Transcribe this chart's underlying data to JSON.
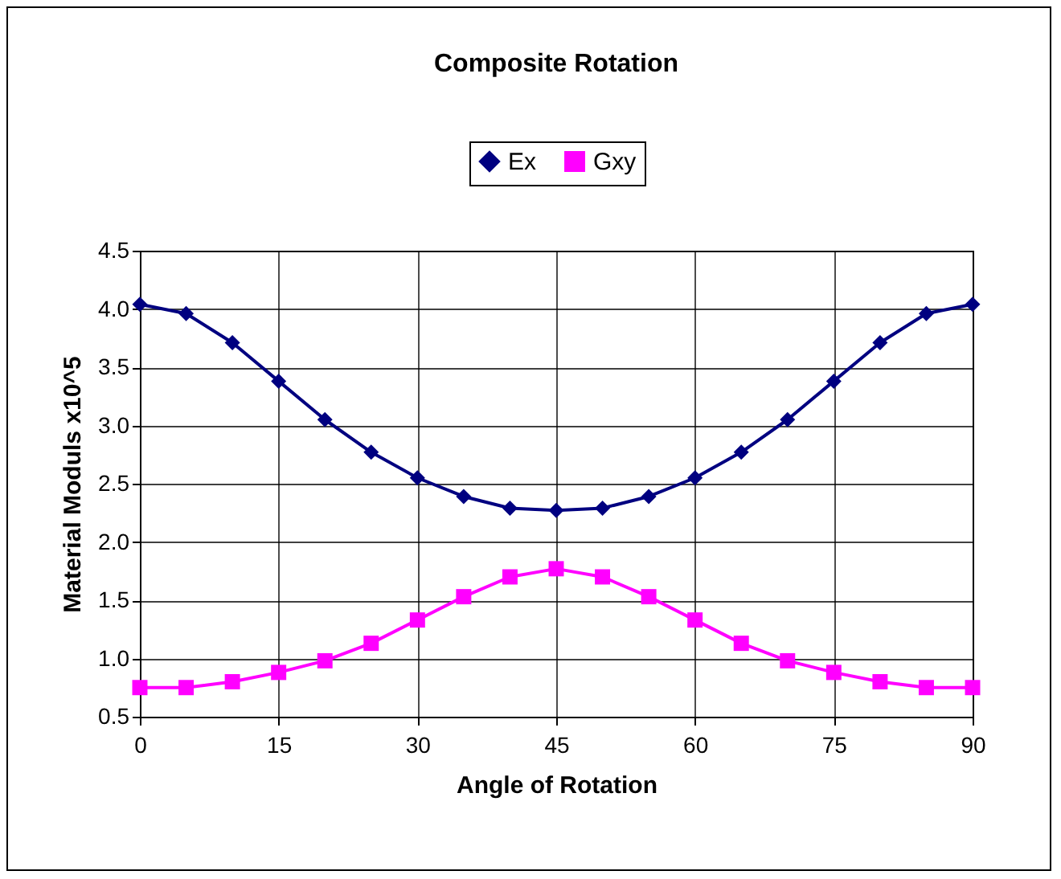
{
  "chart_data": {
    "type": "line",
    "title": "Composite Rotation",
    "xlabel": "Angle of Rotation",
    "ylabel": "Material  Moduls x10^5",
    "x": [
      0,
      5,
      10,
      15,
      20,
      25,
      30,
      35,
      40,
      45,
      50,
      55,
      60,
      65,
      70,
      75,
      80,
      85,
      90
    ],
    "series": [
      {
        "name": "Ex",
        "color": "#000080",
        "marker": "diamond",
        "values": [
          4.04,
          3.96,
          3.71,
          3.38,
          3.05,
          2.77,
          2.55,
          2.39,
          2.29,
          2.27,
          2.29,
          2.39,
          2.55,
          2.77,
          3.05,
          3.38,
          3.71,
          3.96,
          4.04
        ]
      },
      {
        "name": "Gxy",
        "color": "#ff00ff",
        "marker": "square",
        "values": [
          0.75,
          0.75,
          0.8,
          0.88,
          0.98,
          1.13,
          1.33,
          1.53,
          1.7,
          1.77,
          1.7,
          1.53,
          1.33,
          1.13,
          0.98,
          0.88,
          0.8,
          0.75,
          0.75
        ]
      }
    ],
    "xlim": [
      0,
      90
    ],
    "xticks": [
      0,
      15,
      30,
      45,
      60,
      75,
      90
    ],
    "ylim": [
      0.5,
      4.5
    ],
    "yticks": [
      0.5,
      {
        "value": 1,
        "label": "1.0"
      },
      1.5,
      {
        "value": 2,
        "label": "2.0"
      },
      2.5,
      {
        "value": 3,
        "label": "3.0"
      },
      3.5,
      {
        "value": 4,
        "label": "4.0"
      },
      4.5
    ],
    "grid": true,
    "legend": "top",
    "line_style": "solid"
  }
}
